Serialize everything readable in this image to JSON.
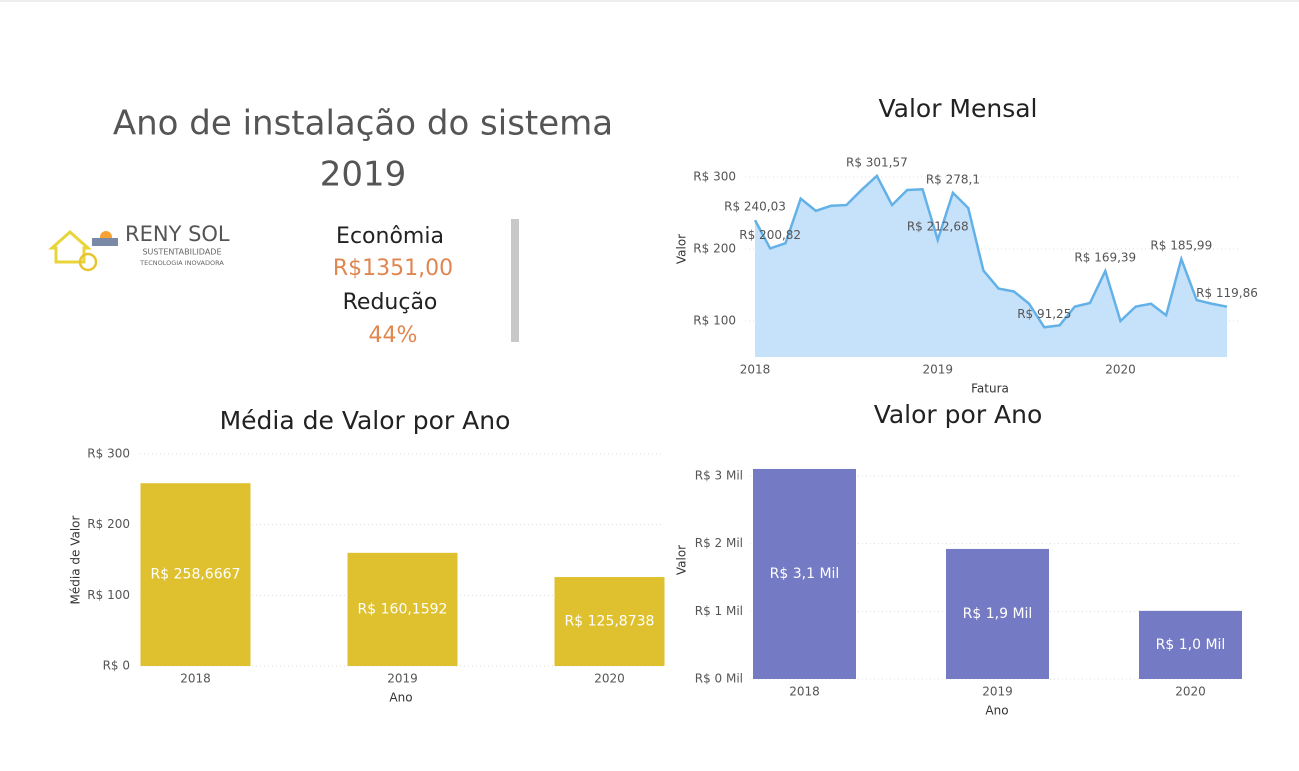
{
  "header": {
    "title": "Ano de instalação do sistema",
    "year": "2019",
    "logo": {
      "name": "RENY SOL",
      "line1": "SUSTENTABILIDADE",
      "line2": "TECNOLOGIA INOVADORA"
    },
    "kpis": [
      {
        "label": "Econômia",
        "value": "R$1351,00"
      },
      {
        "label": "Redução",
        "value": "44%"
      }
    ]
  },
  "chart_data": [
    {
      "type": "area",
      "title": "Valor Mensal",
      "x_label": "Fatura",
      "y_label": "Valor",
      "x": [
        2018,
        2018.083,
        2018.167,
        2018.25,
        2018.333,
        2018.417,
        2018.5,
        2018.583,
        2018.667,
        2018.75,
        2018.833,
        2018.917,
        2019,
        2019.083,
        2019.167,
        2019.25,
        2019.333,
        2019.417,
        2019.5,
        2019.583,
        2019.667,
        2019.75,
        2019.833,
        2019.917,
        2020,
        2020.083,
        2020.167,
        2020.25,
        2020.333,
        2020.417,
        2020.5,
        2020.583
      ],
      "values": [
        240.03,
        200.82,
        208,
        270,
        253,
        260,
        261,
        282,
        301.57,
        261,
        282,
        283,
        212.68,
        278.1,
        257,
        170,
        145,
        141,
        124,
        91.25,
        94,
        120,
        125,
        169.39,
        100,
        120,
        124,
        108,
        185.99,
        129,
        124,
        119.86
      ],
      "value_labels": [
        "R$ 240,03",
        "R$ 200,82",
        null,
        null,
        null,
        null,
        null,
        null,
        "R$ 301,57",
        null,
        null,
        null,
        "R$ 212,68",
        "R$ 278,1",
        null,
        null,
        null,
        null,
        null,
        "R$ 91,25",
        null,
        null,
        null,
        "R$ 169,39",
        null,
        null,
        null,
        null,
        "R$ 185,99",
        null,
        null,
        "R$ 119,86"
      ],
      "color": "#63b1e6",
      "fill": "#c6e2fb",
      "xlim": [
        2018,
        2020.583
      ],
      "xticks": [
        2018,
        2019,
        2020
      ],
      "ylim": [
        50,
        325
      ],
      "yticks": [
        {
          "value": 100,
          "label": "R$ 100"
        },
        {
          "value": 200,
          "label": "R$ 200"
        },
        {
          "value": 300,
          "label": "R$ 300"
        }
      ],
      "grid": true
    },
    {
      "type": "bar",
      "title": "Média de Valor por Ano",
      "x_label": "Ano",
      "y_label": "Média de Valor",
      "categories": [
        "2018",
        "2019",
        "2020"
      ],
      "values": [
        258.6667,
        160.1592,
        125.8738
      ],
      "value_labels": [
        "R$ 258,6667",
        "R$ 160,1592",
        "R$ 125,8738"
      ],
      "color": "#dfc12f",
      "ylim": [
        0,
        300
      ],
      "yticks": [
        {
          "value": 0,
          "label": "R$ 0"
        },
        {
          "value": 100,
          "label": "R$ 100"
        },
        {
          "value": 200,
          "label": "R$ 200"
        },
        {
          "value": 300,
          "label": "R$ 300"
        }
      ],
      "grid": true
    },
    {
      "type": "bar",
      "title": "Valor por Ano",
      "x_label": "Ano",
      "y_label": "Valor",
      "categories": [
        "2018",
        "2019",
        "2020"
      ],
      "values": [
        3.104,
        1.922,
        1.007
      ],
      "value_labels": [
        "R$ 3,1 Mil",
        "R$ 1,9 Mil",
        "R$ 1,0 Mil"
      ],
      "color": "#747ac4",
      "ylim": [
        0,
        3.104
      ],
      "yticks": [
        {
          "value": 0,
          "label": "R$ 0 Mil"
        },
        {
          "value": 1,
          "label": "R$ 1 Mil"
        },
        {
          "value": 2,
          "label": "R$ 2 Mil"
        },
        {
          "value": 3,
          "label": "R$ 3 Mil"
        }
      ],
      "grid": true
    }
  ]
}
